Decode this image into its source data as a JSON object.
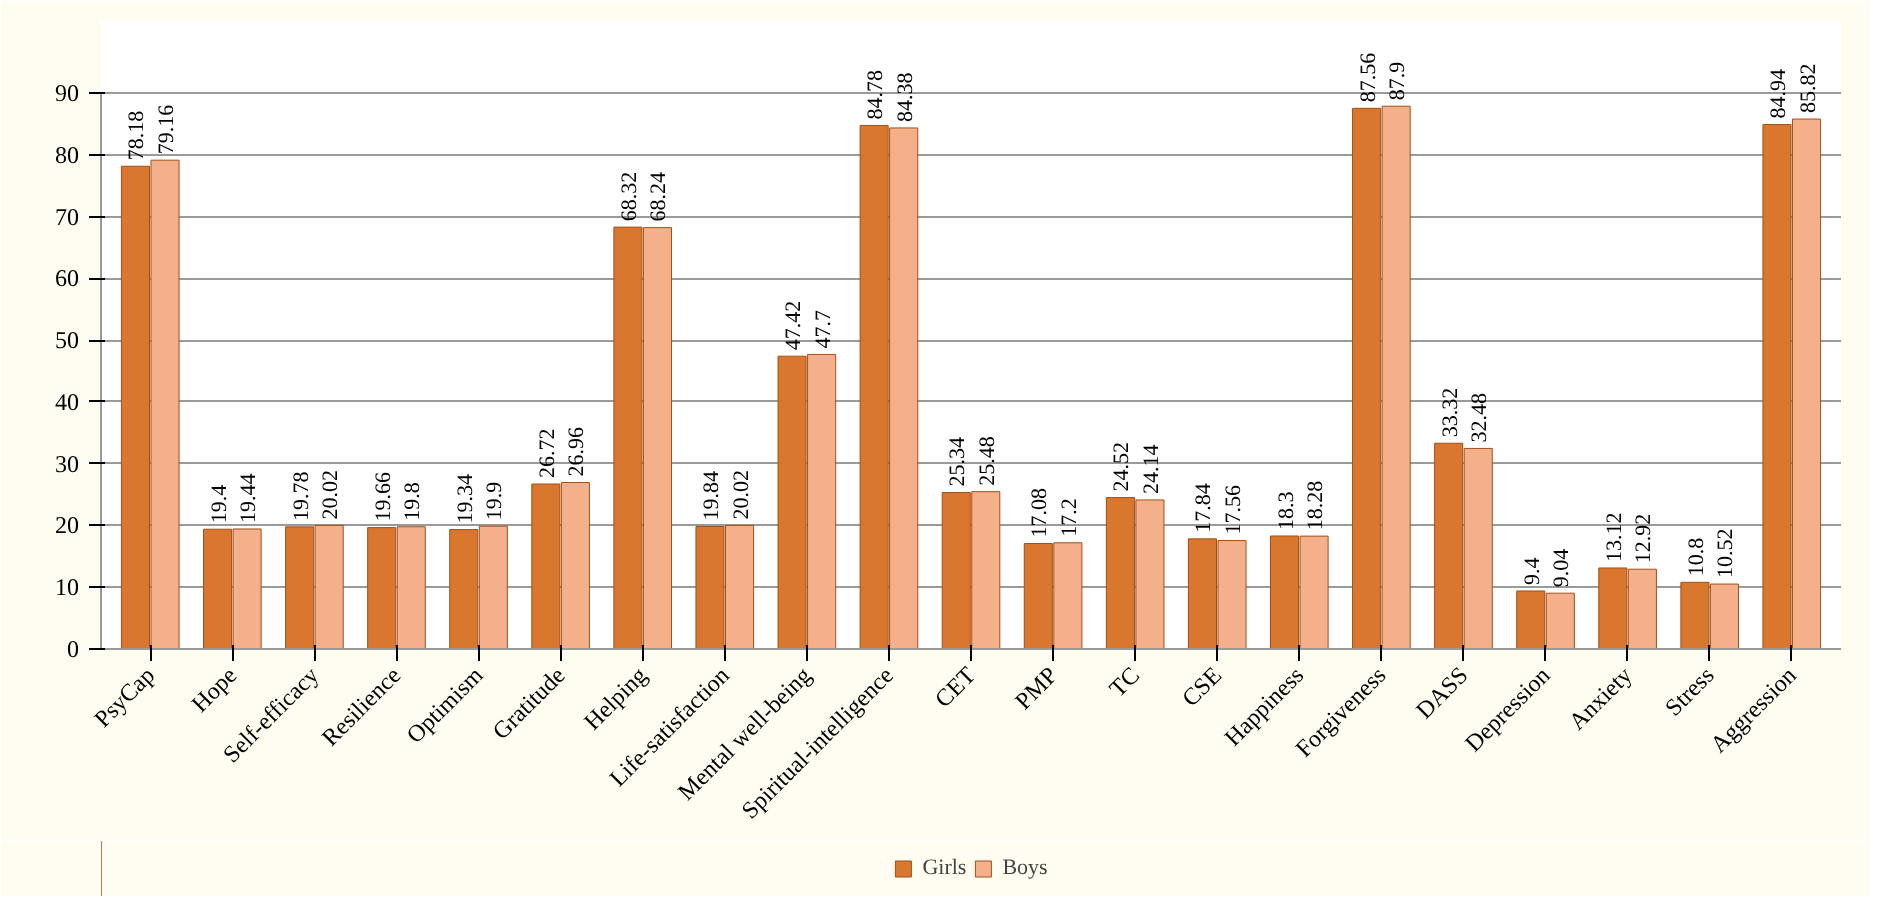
{
  "chart_data": {
    "type": "bar",
    "categories": [
      "PsyCap",
      "Hope",
      "Self-efficacy",
      "Resilience",
      "Optimism",
      "Gratitude",
      "Helping",
      "Life-satisfaction",
      "Mental well-being",
      "Spiritual-intelligence",
      "CET",
      "PMP",
      "TC",
      "CSE",
      "Happiness",
      "Forgiveness",
      "DASS",
      "Depression",
      "Anxiety",
      "Stress",
      "Aggression"
    ],
    "series": [
      {
        "name": "Girls",
        "color": "#d9772e",
        "values": [
          78.18,
          19.4,
          19.78,
          19.66,
          19.34,
          26.72,
          68.32,
          19.84,
          47.42,
          84.78,
          25.34,
          17.08,
          24.52,
          17.84,
          18.3,
          87.56,
          33.32,
          9.4,
          13.12,
          10.8,
          84.94
        ]
      },
      {
        "name": "Boys",
        "color": "#f3b08a",
        "values": [
          79.16,
          19.44,
          20.02,
          19.8,
          19.9,
          26.96,
          68.24,
          20.02,
          47.7,
          84.38,
          25.48,
          17.2,
          24.14,
          17.56,
          18.28,
          87.9,
          32.48,
          9.04,
          12.92,
          10.52,
          85.82
        ]
      }
    ],
    "ylim": [
      0,
      90
    ],
    "yticks": [
      0,
      10,
      20,
      30,
      40,
      50,
      60,
      70,
      80,
      90
    ],
    "grid": "y",
    "legend": "bottom",
    "data_labels": true
  }
}
